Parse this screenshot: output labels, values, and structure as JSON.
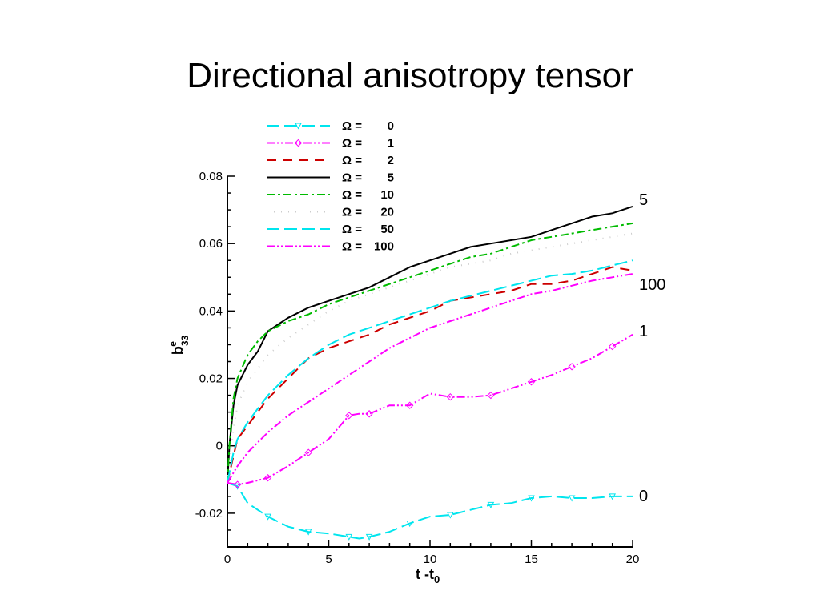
{
  "slide": {
    "title": "Directional anisotropy tensor"
  },
  "chart_data": {
    "type": "line",
    "xlabel": {
      "main": "t -t",
      "sub": "0"
    },
    "ylabel": {
      "main": "b",
      "sub": "33",
      "sup": "e"
    },
    "xlim": [
      0,
      20
    ],
    "ylim": [
      -0.03,
      0.08
    ],
    "xticks": [
      {
        "value": 0,
        "label": "0"
      },
      {
        "value": 5,
        "label": "5"
      },
      {
        "value": 10,
        "label": "10"
      },
      {
        "value": 15,
        "label": "15"
      },
      {
        "value": 20,
        "label": "20"
      }
    ],
    "yticks": [
      {
        "value": -0.02,
        "label": "-0.02"
      },
      {
        "value": 0,
        "label": "0"
      },
      {
        "value": 0.02,
        "label": "0.02"
      },
      {
        "value": 0.04,
        "label": "0.04"
      },
      {
        "value": 0.06,
        "label": "0.06"
      },
      {
        "value": 0.08,
        "label": "0.08"
      }
    ],
    "legend_position": "top",
    "legend_prefix": "Ω =",
    "series": [
      {
        "name": "0",
        "color": "#00e5ee",
        "dash": "16,6",
        "marker": "triangle-down",
        "end_label": "0",
        "x": [
          0,
          0.5,
          1,
          2,
          3,
          4,
          5,
          6,
          6.5,
          7,
          8,
          9,
          10,
          11,
          12,
          13,
          14,
          15,
          16,
          17,
          18,
          19,
          20
        ],
        "y": [
          -0.011,
          -0.012,
          -0.017,
          -0.021,
          -0.024,
          -0.0255,
          -0.026,
          -0.027,
          -0.0275,
          -0.027,
          -0.0255,
          -0.023,
          -0.021,
          -0.0205,
          -0.019,
          -0.0175,
          -0.017,
          -0.0155,
          -0.015,
          -0.0155,
          -0.0155,
          -0.015,
          -0.015
        ]
      },
      {
        "name": "1",
        "color": "#ff00ff",
        "dash": "10,3,2,3,2,3",
        "marker": "diamond",
        "end_label": "1",
        "x": [
          0,
          0.5,
          1,
          2,
          3,
          4,
          5,
          6,
          6.5,
          7,
          8,
          9,
          10,
          11,
          12,
          13,
          14,
          15,
          16,
          17,
          18,
          19,
          20
        ],
        "y": [
          -0.011,
          -0.0115,
          -0.011,
          -0.0095,
          -0.006,
          -0.002,
          0.002,
          0.009,
          0.0095,
          0.0095,
          0.012,
          0.012,
          0.0155,
          0.0145,
          0.0145,
          0.015,
          0.017,
          0.019,
          0.021,
          0.0235,
          0.026,
          0.0295,
          0.033
        ]
      },
      {
        "name": "2",
        "color": "#cc0000",
        "dash": "12,8",
        "marker": "none",
        "end_label": "",
        "x": [
          0,
          0.3,
          0.5,
          1,
          1.5,
          2,
          3,
          4,
          5,
          6,
          7,
          8,
          9,
          10,
          11,
          12,
          13,
          14,
          15,
          16,
          17,
          18,
          19,
          20
        ],
        "y": [
          -0.011,
          -0.003,
          0.002,
          0.006,
          0.01,
          0.014,
          0.02,
          0.026,
          0.029,
          0.031,
          0.033,
          0.036,
          0.038,
          0.04,
          0.043,
          0.044,
          0.045,
          0.046,
          0.048,
          0.048,
          0.049,
          0.051,
          0.053,
          0.052
        ]
      },
      {
        "name": "5",
        "color": "#000000",
        "dash": "none",
        "marker": "none",
        "end_label": "5",
        "x": [
          0,
          0.1,
          0.3,
          0.5,
          1,
          1.5,
          2,
          3,
          4,
          5,
          6,
          7,
          8,
          9,
          10,
          11,
          12,
          13,
          14,
          15,
          16,
          17,
          18,
          19,
          20
        ],
        "y": [
          -0.011,
          0.0,
          0.012,
          0.018,
          0.024,
          0.028,
          0.034,
          0.038,
          0.041,
          0.043,
          0.045,
          0.047,
          0.05,
          0.053,
          0.055,
          0.057,
          0.059,
          0.06,
          0.061,
          0.062,
          0.064,
          0.066,
          0.068,
          0.069,
          0.071
        ]
      },
      {
        "name": "10",
        "color": "#00bb00",
        "dash": "10,4,3,4",
        "marker": "none",
        "end_label": "",
        "x": [
          0,
          0.1,
          0.3,
          0.5,
          1,
          1.5,
          2,
          3,
          4,
          5,
          6,
          7,
          8,
          9,
          10,
          11,
          12,
          13,
          14,
          15,
          16,
          17,
          18,
          19,
          20
        ],
        "y": [
          -0.011,
          0.0,
          0.014,
          0.02,
          0.027,
          0.031,
          0.034,
          0.037,
          0.039,
          0.042,
          0.044,
          0.046,
          0.048,
          0.05,
          0.052,
          0.054,
          0.056,
          0.057,
          0.059,
          0.061,
          0.062,
          0.063,
          0.064,
          0.065,
          0.066
        ]
      },
      {
        "name": "20",
        "color": "#cccccc",
        "dash": "1,8",
        "marker": "none",
        "end_label": "",
        "x": [
          0,
          0.3,
          0.5,
          1,
          2,
          3,
          4,
          5,
          6,
          7,
          8,
          9,
          10,
          11,
          12,
          13,
          14,
          15,
          16,
          17,
          18,
          19,
          20
        ],
        "y": [
          -0.011,
          0.005,
          0.012,
          0.019,
          0.027,
          0.032,
          0.036,
          0.04,
          0.043,
          0.045,
          0.047,
          0.049,
          0.051,
          0.053,
          0.054,
          0.055,
          0.057,
          0.058,
          0.059,
          0.06,
          0.061,
          0.062,
          0.063
        ]
      },
      {
        "name": "50",
        "color": "#00e5ee",
        "dash": "16,6",
        "marker": "none",
        "end_label": "",
        "x": [
          0,
          0.3,
          0.5,
          1,
          1.5,
          2,
          3,
          4,
          5,
          6,
          7,
          8,
          9,
          10,
          11,
          12,
          13,
          14,
          15,
          16,
          17,
          18,
          19,
          20
        ],
        "y": [
          -0.011,
          -0.002,
          0.002,
          0.007,
          0.011,
          0.015,
          0.021,
          0.026,
          0.03,
          0.033,
          0.035,
          0.037,
          0.039,
          0.041,
          0.043,
          0.0445,
          0.046,
          0.0475,
          0.049,
          0.0505,
          0.051,
          0.052,
          0.0535,
          0.055
        ]
      },
      {
        "name": "100",
        "color": "#ff00ff",
        "dash": "10,3,2,3,2,3",
        "marker": "none",
        "end_label": "100",
        "x": [
          0,
          0.5,
          1,
          1.5,
          2,
          3,
          4,
          5,
          6,
          7,
          8,
          9,
          10,
          11,
          12,
          13,
          14,
          15,
          16,
          17,
          18,
          19,
          20
        ],
        "y": [
          -0.011,
          -0.006,
          -0.002,
          0.001,
          0.004,
          0.009,
          0.013,
          0.017,
          0.021,
          0.025,
          0.029,
          0.032,
          0.035,
          0.037,
          0.039,
          0.041,
          0.043,
          0.045,
          0.046,
          0.0475,
          0.049,
          0.05,
          0.051
        ]
      }
    ]
  }
}
